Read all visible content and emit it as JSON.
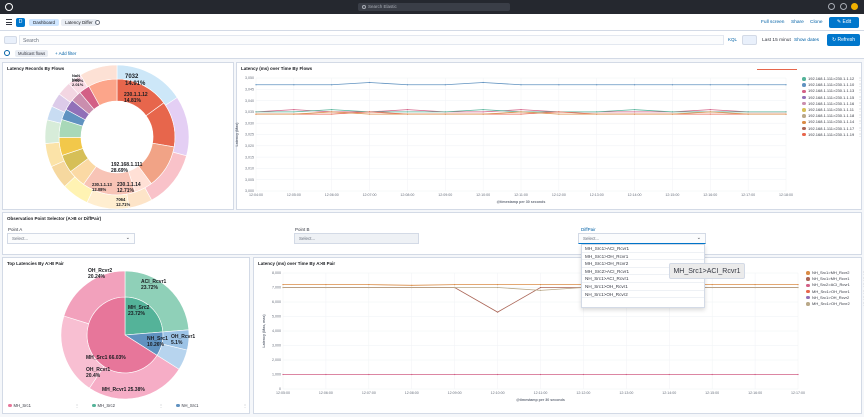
{
  "topbar": {
    "search_placeholder": "Search Elastic"
  },
  "navbar": {
    "breadcrumbs": [
      "Dashboard",
      "Latency Differ"
    ],
    "links": {
      "full_screen": "Full screen",
      "share": "Share",
      "clone": "Clone"
    },
    "edit_label": "Edit"
  },
  "querybar": {
    "placeholder": "Search",
    "kql": "KQL",
    "time_range": "Last 15 minut",
    "show_dates": "Show dates",
    "refresh": "Refresh"
  },
  "filterbar": {
    "filter_pill": "Multicast flows",
    "add_filter": "+ Add filter"
  },
  "panels": {
    "flows_pie": {
      "title": "Latency Records By Flows",
      "labels": [
        {
          "text": "7032",
          "sub": "14.91%"
        },
        {
          "text": "230.1.1.12",
          "sub": "14.81%"
        },
        {
          "text": "192.168.1.111",
          "sub": "28.69%"
        },
        {
          "text": "230.1.1.14",
          "sub": "12.71%"
        },
        {
          "text": "230.1.1.13",
          "sub": "12.08%"
        },
        {
          "text": "7064",
          "sub": "12.71%"
        },
        {
          "text": "NaN",
          "sub": "2.01%"
        },
        {
          "text": "NaN",
          "sub": "2.01%"
        }
      ]
    },
    "latency_flows": {
      "title": "Latency (ms) over Time By Flows",
      "ylabel": "Latency (Max)",
      "xlabel": "@timestamp per 30 seconds",
      "yticks": [
        "3,050",
        "3,045",
        "3,040",
        "3,035",
        "3,030",
        "3,025",
        "3,020",
        "3,015",
        "3,010",
        "3,005",
        "3,000"
      ],
      "xticks": [
        "12:04:00",
        "12:05:00",
        "12:06:00",
        "12:07:00",
        "12:08:00",
        "12:09:00",
        "12:10:00",
        "12:11:00",
        "12:12:00",
        "12:13:00",
        "12:14:00",
        "12:15:00",
        "12:16:00",
        "12:17:00",
        "12:18:00"
      ],
      "legend": [
        {
          "name": "192.168.1.111>230.1.1.12",
          "color": "#54b399"
        },
        {
          "name": "192.168.1.111>230.1.1.10",
          "color": "#6092c0"
        },
        {
          "name": "192.168.1.111>230.1.1.13",
          "color": "#d36086"
        },
        {
          "name": "192.168.1.111>230.1.1.15",
          "color": "#9170b8"
        },
        {
          "name": "192.168.1.111>230.1.1.16",
          "color": "#ca8eae"
        },
        {
          "name": "192.168.1.111>230.1.1.11",
          "color": "#d6bf57"
        },
        {
          "name": "192.168.1.111>230.1.1.18",
          "color": "#b9a888"
        },
        {
          "name": "192.168.1.111>230.1.1.14",
          "color": "#da8b45"
        },
        {
          "name": "192.168.1.111>230.1.1.17",
          "color": "#aa6556"
        },
        {
          "name": "192.168.1.111>230.1.1.19",
          "color": "#e7664c"
        }
      ]
    },
    "control": {
      "title": "Observation Point Selector (A>B or DiffPair)",
      "point_a_label": "Point A",
      "point_a_placeholder": "Select...",
      "point_b_label": "Point B",
      "point_b_placeholder": "Select...",
      "diffpair_label": "DiffPair",
      "diffpair_placeholder": "Select...",
      "options": [
        "MH_Src1>ACI_Rcvr1",
        "MH_Src1>OH_Rcvr1",
        "MH_Src1>OH_Rcvr2",
        "MH_Src2>ACI_Rcvr1",
        "NH_Src1>ACI_Rcvr1",
        "NH_Src1>OH_Rcvr1",
        "NH_Src1>OH_Rcvr2"
      ],
      "tooltip": "MH_Src1>ACI_Rcvr1"
    },
    "ab_pie": {
      "title": "Top Latencies By A>B Pair",
      "labels": [
        {
          "text": "OH_Rcvr2",
          "sub": "20.24%"
        },
        {
          "text": "ACI_Rcvr1",
          "sub": "23.72%"
        },
        {
          "text": "MH_Src2",
          "sub": "23.72%"
        },
        {
          "text": "NH_Src1",
          "sub": "10.26%"
        },
        {
          "text": "OH_Rcvr1",
          "sub": "20.4%"
        },
        {
          "text": "MH_Src1 66.03%",
          "sub": ""
        },
        {
          "text": "OH_Rcvr1",
          "sub": "5.1%"
        },
        {
          "text": "MH_Rcvr1 25.38%",
          "sub": ""
        }
      ],
      "legend": [
        {
          "name": "MH_Src1",
          "color": "#e7769a"
        },
        {
          "name": "MH_Src2",
          "color": "#54b399"
        },
        {
          "name": "NH_Src1",
          "color": "#6092c0"
        }
      ]
    },
    "latency_pair": {
      "title": "Latency (ms) over Time By A>B Pair",
      "ylabel": "Latency (Max, max)",
      "xlabel": "@timestamp per 30 seconds",
      "yticks": [
        "8,000",
        "7,000",
        "6,000",
        "5,000",
        "4,000",
        "3,000",
        "2,000",
        "1,000",
        "0"
      ],
      "xticks": [
        "12:05:00",
        "12:06:00",
        "12:07:00",
        "12:08:00",
        "12:09:00",
        "12:10:00",
        "12:11:00",
        "12:12:00",
        "12:13:00",
        "12:14:00",
        "12:15:00",
        "12:16:00",
        "12:17:00"
      ],
      "legend": [
        {
          "name": "NH_Src1>MH_Rcvr2",
          "color": "#da8b45"
        },
        {
          "name": "NH_Src1>MH_Rcvr1",
          "color": "#aa6556"
        },
        {
          "name": "NH_Src2>ACI_Rcvr1",
          "color": "#d36086"
        },
        {
          "name": "MH_Src1>OH_Rcvr1",
          "color": "#e7664c"
        },
        {
          "name": "NH_Src1>OH_Rcvr2",
          "color": "#9170b8"
        },
        {
          "name": "MH_Src1>OH_Rcvr2",
          "color": "#b9a888"
        }
      ]
    }
  },
  "chart_data": [
    {
      "type": "line",
      "title": "Latency (ms) over Time By Flows",
      "xlabel": "@timestamp per 30 seconds",
      "ylabel": "Latency (Max)",
      "ylim": [
        3000,
        3050
      ],
      "x": [
        "12:04:00",
        "12:05:00",
        "12:06:00",
        "12:07:00",
        "12:08:00",
        "12:09:00",
        "12:10:00",
        "12:11:00",
        "12:12:00",
        "12:13:00",
        "12:14:00",
        "12:15:00",
        "12:16:00",
        "12:17:00",
        "12:18:00"
      ],
      "series": [
        {
          "name": "192.168.1.111>230.1.1.12",
          "values": [
            3047,
            3047,
            3047,
            3048,
            3047,
            3047,
            3048,
            3047,
            3047,
            3047,
            3047,
            3047,
            3047,
            3047,
            3047
          ]
        },
        {
          "name": "192.168.1.111>230.1.1.10",
          "values": [
            3035,
            3036,
            3035,
            3035,
            3036,
            3035,
            3035,
            3036,
            3035,
            3035,
            3035,
            3035,
            3036,
            3035,
            3035
          ]
        },
        {
          "name": "192.168.1.111>230.1.1.13",
          "values": [
            3035,
            3035,
            3036,
            3035,
            3035,
            3035,
            3036,
            3035,
            3035,
            3035,
            3036,
            3035,
            3035,
            3035,
            3035
          ]
        },
        {
          "name": "192.168.1.111>230.1.1.19",
          "values": [
            3034,
            3034,
            3034,
            3035,
            3034,
            3034,
            3034,
            3034,
            3035,
            3034,
            3034,
            3034,
            3034,
            3034,
            3034
          ]
        },
        {
          "name": "192.168.1.111>230.1.1.14",
          "values": [
            3034,
            3034,
            3035,
            3034,
            3034,
            3034,
            3034,
            3035,
            3034,
            3034,
            3034,
            3034,
            3035,
            3034,
            3034
          ]
        }
      ]
    },
    {
      "type": "line",
      "title": "Latency (ms) over Time By A>B Pair",
      "xlabel": "@timestamp per 30 seconds",
      "ylabel": "Latency (Max, max)",
      "ylim": [
        0,
        8000
      ],
      "x": [
        "12:05:00",
        "12:06:00",
        "12:07:00",
        "12:08:00",
        "12:09:00",
        "12:10:00",
        "12:11:00",
        "12:12:00",
        "12:13:00",
        "12:14:00",
        "12:15:00",
        "12:16:00",
        "12:17:00"
      ],
      "series": [
        {
          "name": "NH_Src1>MH_Rcvr2",
          "values": [
            7200,
            7200,
            7200,
            7150,
            7200,
            7200,
            7200,
            7200,
            7200,
            7200,
            7200,
            7200,
            7200
          ]
        },
        {
          "name": "NH_Src1>MH_Rcvr1",
          "values": [
            7000,
            7000,
            7000,
            7000,
            7000,
            5300,
            7000,
            7000,
            7000,
            7000,
            7000,
            7000,
            7000
          ]
        },
        {
          "name": "MH_Src1>OH_Rcvr2",
          "values": [
            7000,
            7000,
            7000,
            7000,
            7000,
            7000,
            6800,
            7000,
            7000,
            7000,
            7000,
            7000,
            7000
          ]
        },
        {
          "name": "NH_Src2>ACI_Rcvr1",
          "values": [
            1000,
            1000,
            1000,
            1000,
            1000,
            1000,
            1000,
            1000,
            1000,
            1000,
            1000,
            1000,
            1000
          ]
        }
      ]
    }
  ]
}
